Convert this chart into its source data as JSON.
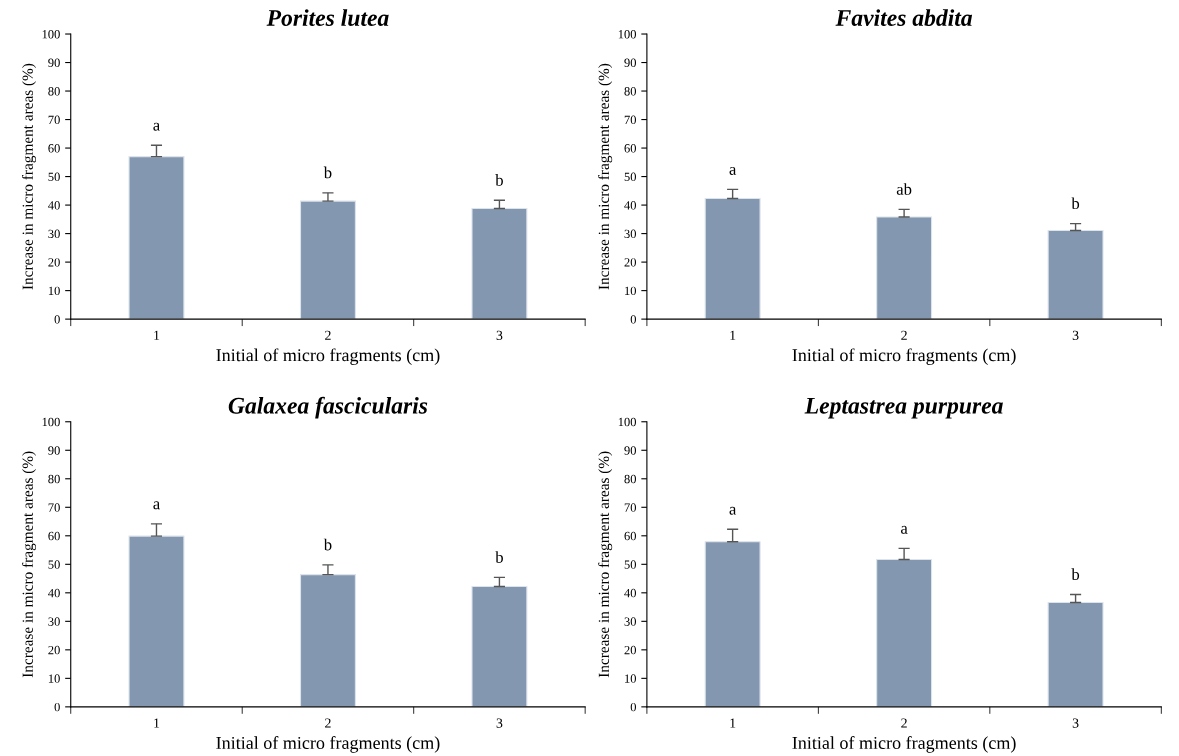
{
  "chart_data": [
    {
      "type": "bar",
      "title": "Porites lutea",
      "xlabel": "Initial of micro fragments (cm)",
      "ylabel": "Increase in micro fragment areas (%)",
      "categories": [
        "1",
        "2",
        "3"
      ],
      "values": [
        57,
        41.4,
        38.8
      ],
      "errors": [
        [
          57,
          61
        ],
        [
          41.4,
          44.3
        ],
        [
          38.8,
          41.7
        ]
      ],
      "color": "#8497b0",
      "ylim": [
        0,
        100
      ],
      "yticks": [
        0,
        10,
        20,
        30,
        40,
        50,
        60,
        70,
        80,
        90,
        100
      ],
      "grid": false,
      "legend": false,
      "annotations": [
        {
          "text": "a",
          "x": "1",
          "y": 61
        },
        {
          "text": "b",
          "x": "2",
          "y": 44.3
        },
        {
          "text": "b",
          "x": "3",
          "y": 41.7
        }
      ]
    },
    {
      "type": "bar",
      "title": "Favites abdita",
      "xlabel": "Initial of micro fragments (cm)",
      "ylabel": "Increase in micro fragment areas (%)",
      "categories": [
        "1",
        "2",
        "3"
      ],
      "values": [
        42.3,
        35.8,
        31.1
      ],
      "errors": [
        [
          42.3,
          45.5
        ],
        [
          35.8,
          38.5
        ],
        [
          31.1,
          33.5
        ]
      ],
      "color": "#8497b0",
      "ylim": [
        0,
        100
      ],
      "yticks": [
        0,
        10,
        20,
        30,
        40,
        50,
        60,
        70,
        80,
        90,
        100
      ],
      "grid": false,
      "legend": false,
      "annotations": [
        {
          "text": "a",
          "x": "1",
          "y": 45.5
        },
        {
          "text": "ab",
          "x": "2",
          "y": 38.5
        },
        {
          "text": "b",
          "x": "3",
          "y": 33.5
        }
      ]
    },
    {
      "type": "bar",
      "title": "Galaxea fascicularis",
      "xlabel": "Initial of micro fragments (cm)",
      "ylabel": "Increase in micro fragment areas (%)",
      "categories": [
        "1",
        "2",
        "3"
      ],
      "values": [
        59.9,
        46.4,
        42.2
      ],
      "errors": [
        [
          59.9,
          64.2
        ],
        [
          46.4,
          49.8
        ],
        [
          42.2,
          45.4
        ]
      ],
      "color": "#8497b0",
      "ylim": [
        0,
        100
      ],
      "yticks": [
        0,
        10,
        20,
        30,
        40,
        50,
        60,
        70,
        80,
        90,
        100
      ],
      "grid": false,
      "legend": false,
      "annotations": [
        {
          "text": "a",
          "x": "1",
          "y": 64.2
        },
        {
          "text": "b",
          "x": "2",
          "y": 49.8
        },
        {
          "text": "b",
          "x": "3",
          "y": 45.4
        }
      ]
    },
    {
      "type": "bar",
      "title": "Leptastrea purpurea",
      "xlabel": "Initial of micro fragments (cm)",
      "ylabel": "Increase in micro fragment areas (%)",
      "categories": [
        "1",
        "2",
        "3"
      ],
      "values": [
        57.9,
        51.7,
        36.6
      ],
      "errors": [
        [
          57.9,
          62.3
        ],
        [
          51.7,
          55.6
        ],
        [
          36.6,
          39.4
        ]
      ],
      "color": "#8497b0",
      "ylim": [
        0,
        100
      ],
      "yticks": [
        0,
        10,
        20,
        30,
        40,
        50,
        60,
        70,
        80,
        90,
        100
      ],
      "grid": false,
      "legend": false,
      "annotations": [
        {
          "text": "a",
          "x": "1",
          "y": 62.3
        },
        {
          "text": "a",
          "x": "2",
          "y": 55.6
        },
        {
          "text": "b",
          "x": "3",
          "y": 39.4
        }
      ]
    }
  ]
}
